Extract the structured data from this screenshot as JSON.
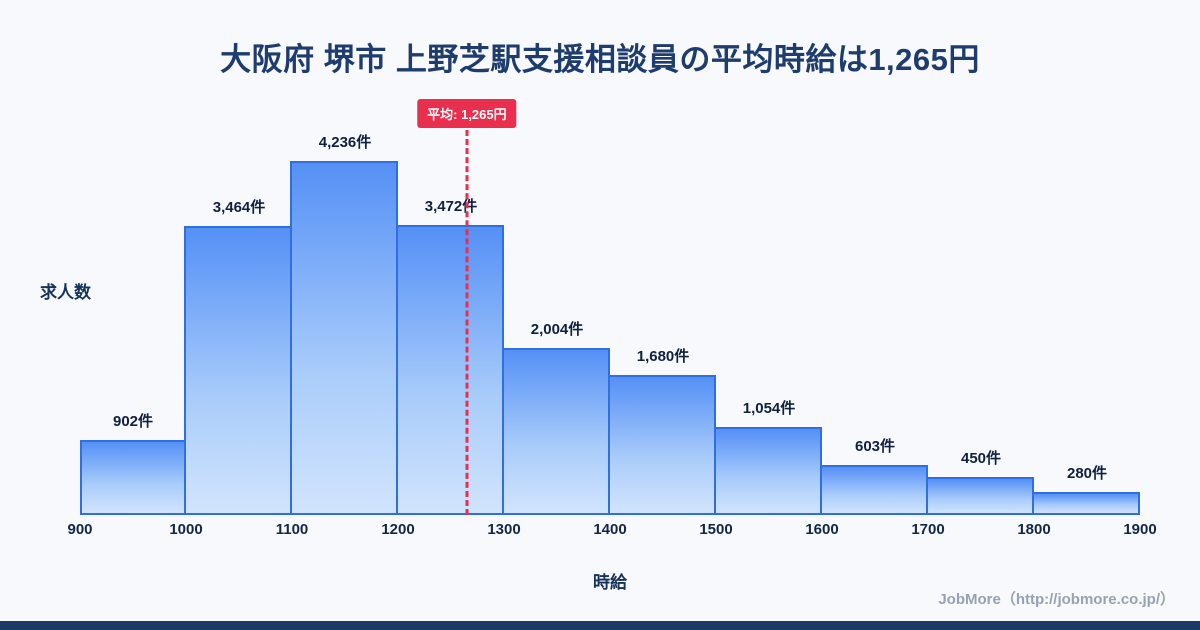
{
  "page": {
    "title": "大阪府 堺市 上野芝駅支援相談員の平均時給は1,265円",
    "footer": "JobMore（http://jobmore.co.jp/）"
  },
  "chart_data": {
    "type": "bar",
    "title": "大阪府 堺市 上野芝駅支援相談員の平均時給は1,265円",
    "xlabel": "時給",
    "ylabel": "求人数",
    "x_range": [
      900,
      1900
    ],
    "bin_width": 100,
    "x_ticks": [
      "900",
      "1000",
      "1100",
      "1200",
      "1300",
      "1400",
      "1500",
      "1600",
      "1700",
      "1800",
      "1900"
    ],
    "values": [
      902,
      3464,
      4236,
      3472,
      2004,
      1680,
      1054,
      603,
      450,
      280
    ],
    "bar_labels": [
      "902件",
      "3,464件",
      "4,236件",
      "3,472件",
      "2,004件",
      "1,680件",
      "1,054件",
      "603件",
      "450件",
      "280件"
    ],
    "average": {
      "value": 1265,
      "label": "平均: 1,265円"
    },
    "grid": false,
    "legend": "none",
    "colors": {
      "background": "#f7f9fc",
      "bar_gradient_top": "#5590f6",
      "bar_gradient_bottom": "#d2e4fd",
      "bar_border": "#2f6fe0",
      "average_line": "#e8304e",
      "title_text": "#1e3c6e",
      "axis_text": "#13274a",
      "footer_text": "#98a2b3",
      "bottom_bar": "#1d3a66"
    }
  }
}
